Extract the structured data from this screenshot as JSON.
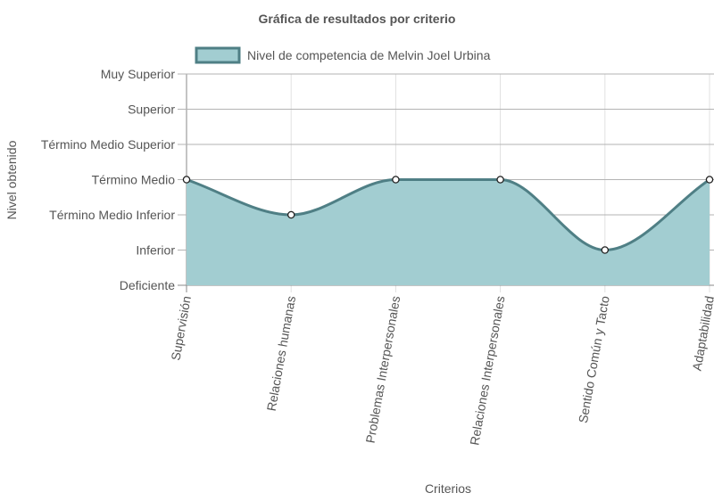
{
  "chart_data": {
    "type": "area",
    "title": "Gráfica de resultados por criterio",
    "xlabel": "Criterios",
    "ylabel": "Nivel obtenido",
    "y_levels": [
      "Deficiente",
      "Inferior",
      "Término Medio Inferior",
      "Término Medio",
      "Término Medio Superior",
      "Superior",
      "Muy Superior"
    ],
    "categories": [
      "Supervisión",
      "Relaciones humanas",
      "Problemas Interpersonales",
      "Relaciones Interpersonales",
      "Sentido Común y Tacto",
      "Adaptabilidad"
    ],
    "series": [
      {
        "name": "Nivel de competencia de Melvin Joel Urbina",
        "values": [
          3,
          2,
          3,
          3,
          1,
          3
        ],
        "value_labels": [
          "Término Medio",
          "Término Medio Inferior",
          "Término Medio",
          "Término Medio",
          "Inferior",
          "Término Medio"
        ],
        "fill": "#a2cdd1",
        "stroke": "#4f7f85"
      }
    ],
    "ylim": [
      0,
      6
    ],
    "grid": true,
    "legend_position": "top"
  }
}
